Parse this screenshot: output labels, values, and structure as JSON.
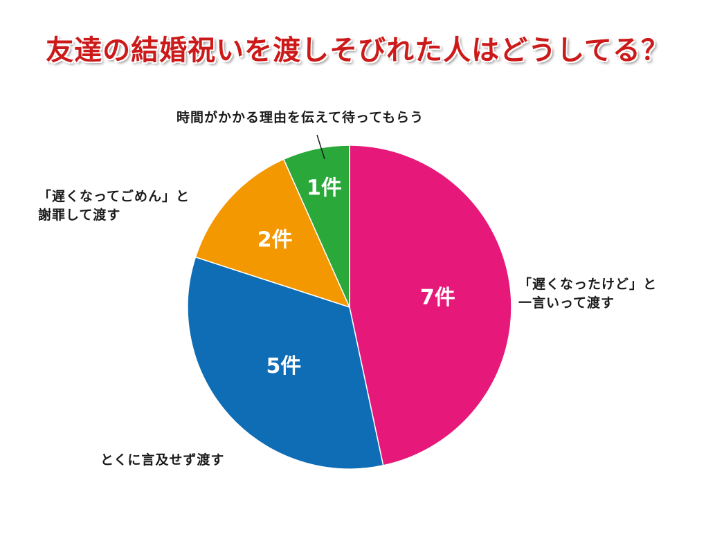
{
  "chart_data": {
    "type": "pie",
    "title": "友達の結婚祝いを渡しそびれた人はどうしてる？",
    "slices": [
      {
        "label": [
          "「遅くなったけど」と",
          "一言いって渡す"
        ],
        "value": 7,
        "value_label": "7件",
        "color": "#e6197a"
      },
      {
        "label": [
          "とくに言及せず渡す"
        ],
        "value": 5,
        "value_label": "5件",
        "color": "#0f6db5"
      },
      {
        "label": [
          "「遅くなってごめん」と",
          "謝罪して渡す"
        ],
        "value": 2,
        "value_label": "2件",
        "color": "#f39800"
      },
      {
        "label": [
          "時間がかかる理由を伝えて待ってもらう"
        ],
        "value": 1,
        "value_label": "1件",
        "color": "#2aa83a"
      }
    ],
    "start_angle": "12 o'clock",
    "direction": "clockwise",
    "legend": "none"
  }
}
